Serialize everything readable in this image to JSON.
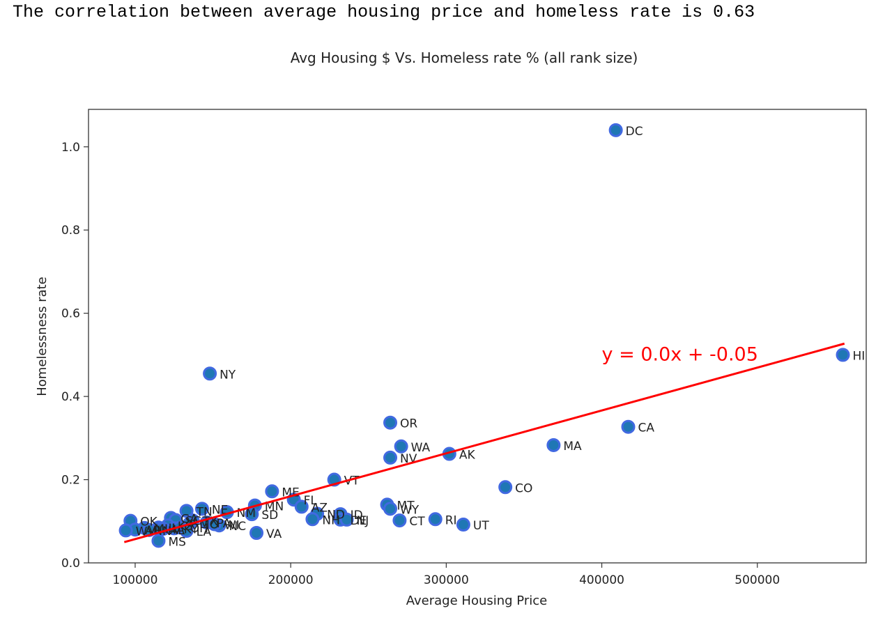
{
  "output_line": "The correlation between average housing price and homeless rate is 0.63",
  "chart_data": {
    "type": "scatter",
    "title": "Avg Housing $ Vs. Homeless rate % (all rank size)",
    "xlabel": "Average Housing Price",
    "ylabel": "Homelessness rate",
    "xlim": [
      70000,
      570000
    ],
    "ylim": [
      0.0,
      1.09
    ],
    "xticks": [
      100000,
      200000,
      300000,
      400000,
      500000
    ],
    "xtick_labels": [
      "100000",
      "200000",
      "300000",
      "400000",
      "500000"
    ],
    "yticks": [
      0.0,
      0.2,
      0.4,
      0.6,
      0.8,
      1.0
    ],
    "ytick_labels": [
      "0.0",
      "0.2",
      "0.4",
      "0.6",
      "0.8",
      "1.0"
    ],
    "grid": false,
    "marker_color": "#1f77b4",
    "marker_edge_color": "#4169e1",
    "regression": {
      "equation_label": "y = 0.0x + -0.05",
      "color": "#ff0000",
      "x_start": 93000,
      "x_end": 556000,
      "y_start": 0.05,
      "y_end": 0.527,
      "label_x": 400000,
      "label_y": 0.5
    },
    "points": [
      {
        "label": "DC",
        "x": 409000,
        "y": 1.04
      },
      {
        "label": "HI",
        "x": 555000,
        "y": 0.5
      },
      {
        "label": "NY",
        "x": 148000,
        "y": 0.455
      },
      {
        "label": "OR",
        "x": 264000,
        "y": 0.337
      },
      {
        "label": "CA",
        "x": 417000,
        "y": 0.327
      },
      {
        "label": "WA",
        "x": 271000,
        "y": 0.28
      },
      {
        "label": "MA",
        "x": 369000,
        "y": 0.283
      },
      {
        "label": "AK",
        "x": 302000,
        "y": 0.262
      },
      {
        "label": "NV",
        "x": 264000,
        "y": 0.253
      },
      {
        "label": "VT",
        "x": 228000,
        "y": 0.2
      },
      {
        "label": "CO",
        "x": 338000,
        "y": 0.182
      },
      {
        "label": "ME",
        "x": 188000,
        "y": 0.172
      },
      {
        "label": "FL",
        "x": 202000,
        "y": 0.152
      },
      {
        "label": "AZ",
        "x": 207000,
        "y": 0.135
      },
      {
        "label": "MN",
        "x": 177000,
        "y": 0.138
      },
      {
        "label": "MT",
        "x": 262000,
        "y": 0.14
      },
      {
        "label": "WY",
        "x": 264000,
        "y": 0.13
      },
      {
        "label": "NE",
        "x": 143000,
        "y": 0.13
      },
      {
        "label": "TN",
        "x": 133000,
        "y": 0.125
      },
      {
        "label": "NM",
        "x": 159000,
        "y": 0.122
      },
      {
        "label": "SD",
        "x": 175000,
        "y": 0.117
      },
      {
        "label": "ID",
        "x": 232000,
        "y": 0.117
      },
      {
        "label": "ND",
        "x": 217000,
        "y": 0.118
      },
      {
        "label": "NH",
        "x": 214000,
        "y": 0.105
      },
      {
        "label": "DE",
        "x": 232000,
        "y": 0.104
      },
      {
        "label": "NJ",
        "x": 236000,
        "y": 0.104
      },
      {
        "label": "RI",
        "x": 293000,
        "y": 0.105
      },
      {
        "label": "CT",
        "x": 270000,
        "y": 0.102
      },
      {
        "label": "UT",
        "x": 311000,
        "y": 0.092
      },
      {
        "label": "OK",
        "x": 97000,
        "y": 0.101
      },
      {
        "label": "GA",
        "x": 123000,
        "y": 0.108
      },
      {
        "label": "SC",
        "x": 126000,
        "y": 0.103
      },
      {
        "label": "TX",
        "x": 137000,
        "y": 0.102
      },
      {
        "label": "PA",
        "x": 146000,
        "y": 0.097
      },
      {
        "label": "MO",
        "x": 135000,
        "y": 0.095
      },
      {
        "label": "KS",
        "x": 121000,
        "y": 0.09
      },
      {
        "label": "NC",
        "x": 154000,
        "y": 0.09
      },
      {
        "label": "WI",
        "x": 151000,
        "y": 0.093
      },
      {
        "label": "IL",
        "x": 115000,
        "y": 0.085
      },
      {
        "label": "MI",
        "x": 106000,
        "y": 0.084
      },
      {
        "label": "IA",
        "x": 118000,
        "y": 0.082
      },
      {
        "label": "IN",
        "x": 109000,
        "y": 0.079
      },
      {
        "label": "KY",
        "x": 125000,
        "y": 0.083
      },
      {
        "label": "OH",
        "x": 129000,
        "y": 0.085
      },
      {
        "label": "AL",
        "x": 116000,
        "y": 0.08
      },
      {
        "label": "AR",
        "x": 100000,
        "y": 0.08
      },
      {
        "label": "WV",
        "x": 94000,
        "y": 0.078
      },
      {
        "label": "LA",
        "x": 133000,
        "y": 0.077
      },
      {
        "label": "VA",
        "x": 178000,
        "y": 0.072
      },
      {
        "label": "MS",
        "x": 115000,
        "y": 0.053
      }
    ]
  }
}
